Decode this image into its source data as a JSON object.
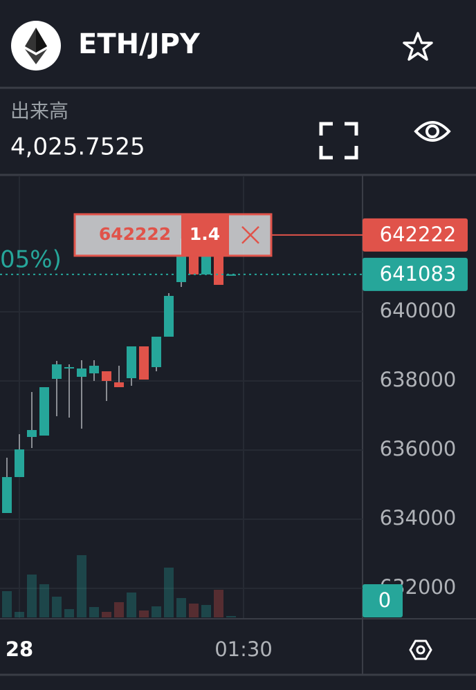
{
  "header": {
    "title": "ETH/JPY"
  },
  "stats": {
    "label": "出来高",
    "value": "4,025.7525"
  },
  "chart_data": {
    "type": "candlestick",
    "partial_label": "05%)",
    "categories": [
      null,
      "28",
      null,
      null,
      null,
      null,
      null,
      null,
      null,
      null,
      null,
      null,
      null,
      null,
      null,
      null,
      null,
      null,
      null,
      "01:30"
    ],
    "open": [
      634180,
      635220,
      636380,
      636420,
      638060,
      638360,
      638120,
      638220,
      638280,
      637960,
      638080,
      639000,
      638400,
      639280,
      640860,
      641640,
      641080,
      641640,
      641083,
      null
    ],
    "high": [
      635780,
      636460,
      637680,
      637820,
      638580,
      638480,
      638600,
      638600,
      638280,
      638440,
      639000,
      639000,
      639280,
      640540,
      642120,
      641640,
      641640,
      641640,
      641083,
      null
    ],
    "low": [
      634180,
      635220,
      636060,
      636420,
      636980,
      636940,
      636620,
      638000,
      637420,
      637820,
      637860,
      638040,
      638280,
      639280,
      640720,
      641080,
      641080,
      640780,
      641083,
      null
    ],
    "close": [
      635220,
      636020,
      636580,
      637820,
      638480,
      638400,
      638360,
      638440,
      638000,
      637820,
      639000,
      638040,
      639280,
      640460,
      641640,
      641080,
      641640,
      640780,
      641083,
      null
    ],
    "volume": [
      38,
      8,
      62,
      48,
      30,
      12,
      90,
      15,
      8,
      22,
      36,
      10,
      16,
      72,
      28,
      20,
      18,
      40,
      2,
      null
    ],
    "up_color": "#26a69a",
    "down_color": "#e0534a",
    "ylim": [
      631120,
      643960
    ],
    "yticks": [
      632000,
      634000,
      636000,
      638000,
      640000
    ],
    "y2lim": [
      0,
      640
    ],
    "grid": true,
    "last_price": 641083,
    "order_price": 642222,
    "order_qty": 1.4,
    "volume_last": 0
  }
}
